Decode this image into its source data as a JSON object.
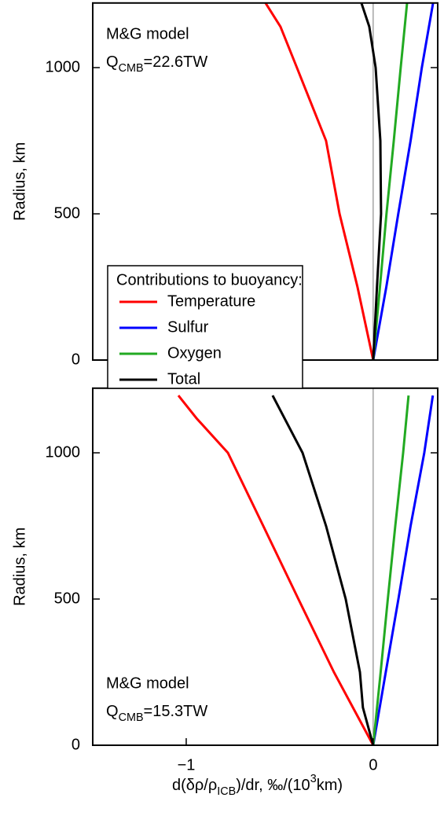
{
  "chart_data": [
    {
      "type": "line",
      "y_label": "Radius, km",
      "annotation": [
        "M&G model"
      ],
      "annotation_q": [
        "Q",
        "CMB",
        "=22.6TW"
      ],
      "legend_title": "Contributions to buoyancy:",
      "xlim": [
        -1.5,
        0.345
      ],
      "ylim": [
        0,
        1221
      ],
      "yticks": [
        0,
        500,
        1000
      ],
      "series": [
        {
          "name": "Temperature",
          "color": "#ff0000",
          "x": [
            0,
            -0.084,
            -0.18,
            -0.252,
            -0.408,
            -0.496,
            -0.576
          ],
          "y": [
            0,
            250,
            500,
            750,
            1000,
            1140,
            1221
          ]
        },
        {
          "name": "Sulfur",
          "color": "#0000ff",
          "x": [
            0,
            0.07,
            0.134,
            0.2,
            0.26,
            0.32
          ],
          "y": [
            0,
            250,
            500,
            750,
            1000,
            1221
          ]
        },
        {
          "name": "Oxygen",
          "color": "#22aa22",
          "x": [
            0,
            0.036,
            0.071,
            0.11,
            0.147,
            0.181
          ],
          "y": [
            0,
            250,
            500,
            750,
            1000,
            1221
          ]
        },
        {
          "name": "Total",
          "color": "#000000",
          "x": [
            0,
            0.02,
            0.042,
            0.038,
            0.013,
            -0.021,
            -0.063
          ],
          "y": [
            0,
            250,
            500,
            750,
            1000,
            1140,
            1221
          ]
        }
      ]
    },
    {
      "type": "line",
      "y_label": "Radius, km",
      "annotation": [
        "M&G model"
      ],
      "annotation_q": [
        "Q",
        "CMB",
        "=15.3TW"
      ],
      "x_label": [
        "d(δρ/ρ",
        "ICB",
        ")/dr, ‰/(10",
        "3",
        "km)"
      ],
      "xlim": [
        -1.5,
        0.345
      ],
      "ylim": [
        0,
        1221
      ],
      "yticks": [
        0,
        500,
        1000
      ],
      "xticks": [
        {
          "value": -1,
          "label": "−1"
        },
        0
      ],
      "series": [
        {
          "name": "Temperature",
          "color": "#ff0000",
          "x": [
            0,
            -0.21,
            -0.4,
            -0.588,
            -0.777,
            -0.945,
            -1.042
          ],
          "y": [
            0,
            250,
            500,
            750,
            1000,
            1118,
            1196
          ]
        },
        {
          "name": "Sulfur",
          "color": "#0000ff",
          "x": [
            0,
            0.067,
            0.135,
            0.2,
            0.273,
            0.319
          ],
          "y": [
            0,
            250,
            500,
            750,
            1000,
            1196
          ]
        },
        {
          "name": "Oxygen",
          "color": "#22aa22",
          "x": [
            0,
            0.04,
            0.078,
            0.118,
            0.16,
            0.189
          ],
          "y": [
            0,
            250,
            500,
            750,
            1000,
            1196
          ]
        },
        {
          "name": "Total",
          "color": "#000000",
          "x": [
            0,
            -0.055,
            -0.071,
            -0.147,
            -0.252,
            -0.378,
            -0.538
          ],
          "y": [
            0,
            129,
            250,
            500,
            750,
            1000,
            1196
          ]
        }
      ]
    }
  ]
}
